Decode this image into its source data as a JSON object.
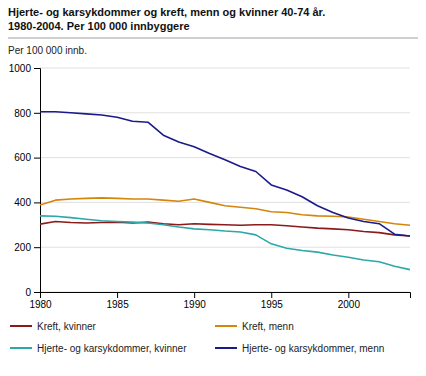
{
  "chart_data": {
    "type": "line",
    "title": "Hjerte- og karsykdommer og kreft, menn og kvinner 40-74 år.",
    "subtitle": "1980-2004. Per 100 000 innbyggere",
    "ylabel": "Per 100 000 innb.",
    "x": [
      1980,
      1981,
      1982,
      1983,
      1984,
      1985,
      1986,
      1987,
      1988,
      1989,
      1990,
      1991,
      1992,
      1993,
      1994,
      1995,
      1996,
      1997,
      1998,
      1999,
      2000,
      2001,
      2002,
      2003,
      2004
    ],
    "series": [
      {
        "name": "Kreft, kvinner",
        "color": "#8B1A1A",
        "values": [
          303,
          315,
          310,
          308,
          310,
          312,
          308,
          312,
          305,
          300,
          305,
          302,
          300,
          298,
          300,
          300,
          296,
          290,
          285,
          282,
          278,
          270,
          265,
          255,
          250
        ]
      },
      {
        "name": "Kreft, menn",
        "color": "#D4850A",
        "values": [
          388,
          410,
          415,
          418,
          420,
          418,
          415,
          415,
          410,
          405,
          415,
          400,
          385,
          378,
          372,
          358,
          355,
          345,
          340,
          338,
          335,
          325,
          315,
          305,
          298
        ]
      },
      {
        "name": "Hjerte- og karsykdommer, kvinner",
        "color": "#2CA8A8",
        "values": [
          340,
          338,
          332,
          325,
          318,
          315,
          312,
          308,
          300,
          290,
          282,
          278,
          272,
          268,
          255,
          215,
          195,
          185,
          178,
          165,
          155,
          143,
          135,
          115,
          100
        ]
      },
      {
        "name": "Hjerte- og karsykdommer, menn",
        "color": "#1A1A8C",
        "values": [
          805,
          805,
          800,
          795,
          790,
          780,
          762,
          758,
          700,
          670,
          648,
          618,
          590,
          560,
          538,
          478,
          455,
          425,
          385,
          355,
          330,
          315,
          305,
          258,
          250
        ]
      }
    ],
    "xlim": [
      1980,
      2004
    ],
    "ylim": [
      0,
      1000
    ],
    "xticks": [
      1980,
      1985,
      1990,
      1995,
      2000
    ],
    "yticks": [
      0,
      200,
      400,
      600,
      800,
      1000
    ],
    "grid": "y",
    "legend": "bottom"
  }
}
